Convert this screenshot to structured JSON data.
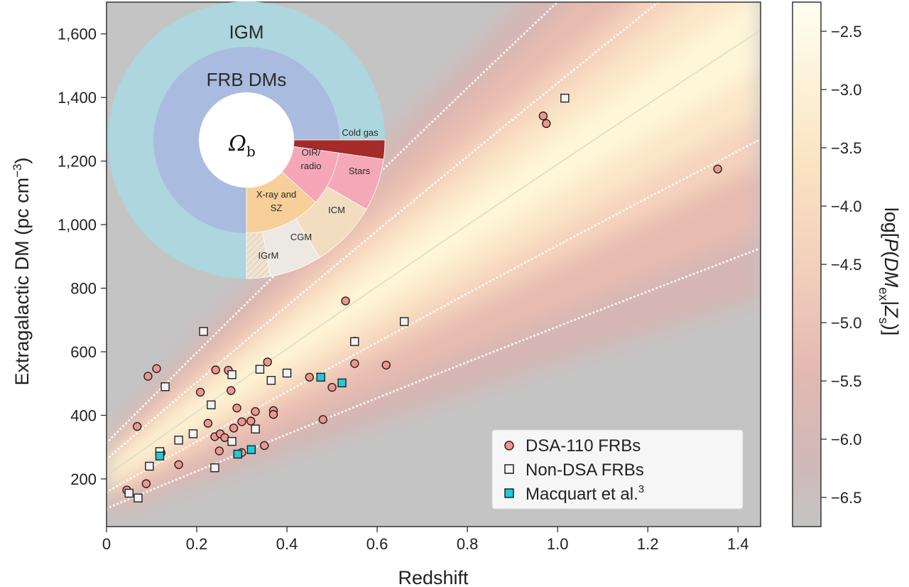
{
  "chart_data": {
    "type": "scatter",
    "xlabel": "Redshift",
    "ylabel": "Extragalactic DM (pc cm",
    "ylabel_sup": "−3",
    "ylabel_close": ")",
    "xlim": [
      0,
      1.45
    ],
    "ylim": [
      50,
      1700
    ],
    "x_ticks": [
      {
        "v": 0,
        "t": "0"
      },
      {
        "v": 0.2,
        "t": "0.2"
      },
      {
        "v": 0.4,
        "t": "0.4"
      },
      {
        "v": 0.6,
        "t": "0.6"
      },
      {
        "v": 0.8,
        "t": "0.8"
      },
      {
        "v": 1.0,
        "t": "1.0"
      },
      {
        "v": 1.2,
        "t": "1.2"
      },
      {
        "v": 1.4,
        "t": "1.4"
      }
    ],
    "y_ticks": [
      {
        "v": 200,
        "t": "200"
      },
      {
        "v": 400,
        "t": "400"
      },
      {
        "v": 600,
        "t": "600"
      },
      {
        "v": 800,
        "t": "800"
      },
      {
        "v": 1000,
        "t": "1,000"
      },
      {
        "v": 1200,
        "t": "1,200"
      },
      {
        "v": 1400,
        "t": "1,400"
      },
      {
        "v": 1600,
        "t": "1,600"
      }
    ],
    "colorbar": {
      "label_parts": [
        "log[",
        "P",
        "(",
        "DM",
        "ex",
        "|",
        "Z",
        "s",
        ")]"
      ],
      "range": [
        -6.75,
        -2.25
      ],
      "ticks": [
        {
          "v": -2.5,
          "t": "−2.5"
        },
        {
          "v": -3.0,
          "t": "−3.0"
        },
        {
          "v": -3.5,
          "t": "−3.5"
        },
        {
          "v": -4.0,
          "t": "−4.0"
        },
        {
          "v": -4.5,
          "t": "−4.5"
        },
        {
          "v": -5.0,
          "t": "−5.0"
        },
        {
          "v": -5.5,
          "t": "−5.5"
        },
        {
          "v": -6.0,
          "t": "−6.0"
        },
        {
          "v": -6.5,
          "t": "−6.5"
        }
      ]
    },
    "legend_position": "bottom-right",
    "series": [
      {
        "name": "DSA-110 FRBs",
        "marker": "circle",
        "color": "#f0958e",
        "points": [
          [
            0.045,
            165
          ],
          [
            0.068,
            365
          ],
          [
            0.088,
            185
          ],
          [
            0.092,
            523
          ],
          [
            0.111,
            547
          ],
          [
            0.121,
            282
          ],
          [
            0.16,
            245
          ],
          [
            0.208,
            473
          ],
          [
            0.225,
            375
          ],
          [
            0.24,
            333
          ],
          [
            0.242,
            543
          ],
          [
            0.25,
            288
          ],
          [
            0.252,
            342
          ],
          [
            0.262,
            330
          ],
          [
            0.27,
            542
          ],
          [
            0.276,
            478
          ],
          [
            0.282,
            360
          ],
          [
            0.289,
            423
          ],
          [
            0.3,
            380
          ],
          [
            0.3,
            283
          ],
          [
            0.32,
            382
          ],
          [
            0.33,
            412
          ],
          [
            0.35,
            305
          ],
          [
            0.357,
            568
          ],
          [
            0.37,
            415
          ],
          [
            0.37,
            403
          ],
          [
            0.4,
            533
          ],
          [
            0.45,
            520
          ],
          [
            0.5,
            488
          ],
          [
            0.48,
            387
          ],
          [
            0.53,
            760
          ],
          [
            0.55,
            633
          ],
          [
            0.55,
            563
          ],
          [
            0.62,
            558
          ],
          [
            0.968,
            1342
          ],
          [
            0.975,
            1318
          ],
          [
            1.355,
            1175
          ]
        ]
      },
      {
        "name": "Non-DSA FRBs",
        "marker": "square",
        "color": "#f2f2f2",
        "points": [
          [
            0.05,
            155
          ],
          [
            0.07,
            140
          ],
          [
            0.095,
            240
          ],
          [
            0.118,
            286
          ],
          [
            0.13,
            490
          ],
          [
            0.16,
            322
          ],
          [
            0.192,
            342
          ],
          [
            0.215,
            664
          ],
          [
            0.232,
            433
          ],
          [
            0.24,
            235
          ],
          [
            0.278,
            318
          ],
          [
            0.278,
            528
          ],
          [
            0.34,
            545
          ],
          [
            0.33,
            357
          ],
          [
            0.365,
            510
          ],
          [
            0.4,
            533
          ],
          [
            0.55,
            632
          ],
          [
            0.66,
            695
          ],
          [
            1.016,
            1398
          ]
        ]
      },
      {
        "name": "Macquart et al.",
        "name_sup": "3",
        "marker": "square",
        "color": "#22c8d8",
        "points": [
          [
            0.118,
            272
          ],
          [
            0.291,
            278
          ],
          [
            0.321,
            292
          ],
          [
            0.475,
            520
          ],
          [
            0.522,
            502
          ]
        ]
      }
    ],
    "donut": {
      "outer_label": "IGM",
      "inner_label": "FRB DMs",
      "center_label": "Ω",
      "center_sub": "b",
      "segments": [
        {
          "label": "Cold gas",
          "color": "#a52a2a"
        },
        {
          "label": "Stars",
          "color": "#f4a9b8"
        },
        {
          "label": "OIR/",
          "label2": "radio",
          "color": "#f6a7b7"
        },
        {
          "label": "ICM",
          "color": "#f2ddc0"
        },
        {
          "label": "X-ray and",
          "label2": "SZ",
          "color": "#f7cf98"
        },
        {
          "label": "CGM",
          "color": "#ece8e2"
        },
        {
          "label": "IGrM",
          "color": "#efe3d2"
        }
      ],
      "colors": {
        "igm": "#add6de",
        "frb": "#a9bcdf"
      }
    }
  }
}
